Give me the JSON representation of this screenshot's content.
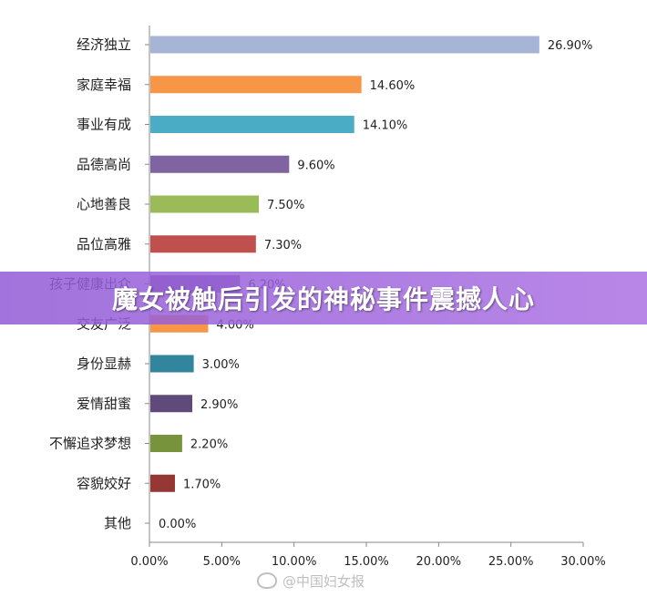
{
  "banner": {
    "text": "魔女被触后引发的神秘事件震撼人心"
  },
  "watermark": {
    "text": "@中国妇女报"
  },
  "chart_data": {
    "type": "bar",
    "orientation": "horizontal",
    "categories": [
      "经济独立",
      "家庭幸福",
      "事业有成",
      "品德高尚",
      "心地善良",
      "品位高雅",
      "孩子健康出众",
      "交友广泛",
      "身份显赫",
      "爱情甜蜜",
      "不懈追求梦想",
      "容貌姣好",
      "其他"
    ],
    "values": [
      26.9,
      14.6,
      14.1,
      9.6,
      7.5,
      7.3,
      6.2,
      4.0,
      3.0,
      2.9,
      2.2,
      1.7,
      0.0
    ],
    "value_labels": [
      "26.90%",
      "14.60%",
      "14.10%",
      "9.60%",
      "7.50%",
      "7.30%",
      "6.20%",
      "4.00%",
      "3.00%",
      "2.90%",
      "2.20%",
      "1.70%",
      "0.00%"
    ],
    "colors": [
      "#a6b4d6",
      "#f79646",
      "#4bacc6",
      "#8064a2",
      "#9bbb59",
      "#c0504d",
      "#8064a2",
      "#f79646",
      "#31859c",
      "#604a7b",
      "#77933c",
      "#953735",
      "#cccccc"
    ],
    "xlim": [
      0,
      30
    ],
    "xticks": [
      0,
      5,
      10,
      15,
      20,
      25,
      30
    ],
    "xtick_labels": [
      "0.00%",
      "5.00%",
      "10.00%",
      "15.00%",
      "20.00%",
      "25.00%",
      "30.00%"
    ],
    "title": "",
    "xlabel": "",
    "ylabel": "",
    "grid": false,
    "legend": "none"
  }
}
